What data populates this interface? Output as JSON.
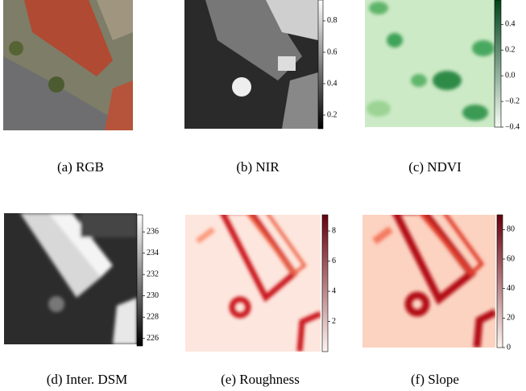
{
  "panels": [
    {
      "caption": "(a) RGB"
    },
    {
      "caption": "(b) NIR",
      "colorbar": {
        "lim": [
          0.113,
          0.933
        ],
        "ticks": [
          0.2,
          0.4,
          0.6,
          0.8
        ],
        "colors": [
          "#000000",
          "#ffffff"
        ]
      }
    },
    {
      "caption": "(c) NDVI",
      "colorbar": {
        "lim": [
          -0.4,
          0.59
        ],
        "ticks": [
          {
            "value": -0.4,
            "label": "−0.4"
          },
          {
            "value": -0.2,
            "label": "−0.2"
          },
          {
            "value": 0.0,
            "label": "0.0"
          },
          0.2,
          0.4
        ],
        "colors": [
          "#f7fcf5",
          "#00441b"
        ]
      }
    },
    {
      "caption": "(d) Inter. DSM",
      "colorbar": {
        "lim": [
          225.3,
          237.6
        ],
        "ticks": [
          226,
          228,
          230,
          232,
          234,
          236
        ],
        "colors": [
          "#000000",
          "#ffffff"
        ]
      }
    },
    {
      "caption": "(e) Roughness",
      "colorbar": {
        "lim": [
          0,
          9.07
        ],
        "ticks": [
          2,
          4,
          6,
          8
        ],
        "colors": [
          "#fff5f0",
          "#67000d"
        ]
      }
    },
    {
      "caption": "(f) Slope",
      "colorbar": {
        "lim": [
          0,
          90
        ],
        "ticks": [
          0,
          20,
          40,
          60,
          80
        ],
        "colors": [
          "#fff5f0",
          "#67000d"
        ]
      }
    }
  ]
}
